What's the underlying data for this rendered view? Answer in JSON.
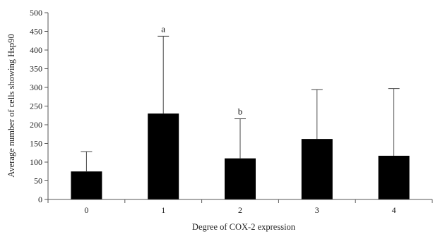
{
  "chart_data": {
    "type": "bar",
    "title": "",
    "xlabel": "Degree of  COX-2 expression",
    "ylabel": "Average number of cells showing Hsp90",
    "categories": [
      "0",
      "1",
      "2",
      "3",
      "4"
    ],
    "values": [
      75,
      230,
      110,
      162,
      117
    ],
    "error_upper": [
      128,
      437,
      216,
      294,
      297
    ],
    "annotations": [
      "",
      "a",
      "b",
      "",
      ""
    ],
    "ylim": [
      0,
      500
    ],
    "yticks": [
      0,
      50,
      100,
      150,
      200,
      250,
      300,
      350,
      400,
      450,
      500
    ],
    "grid": false,
    "bar_color": "#000000"
  }
}
